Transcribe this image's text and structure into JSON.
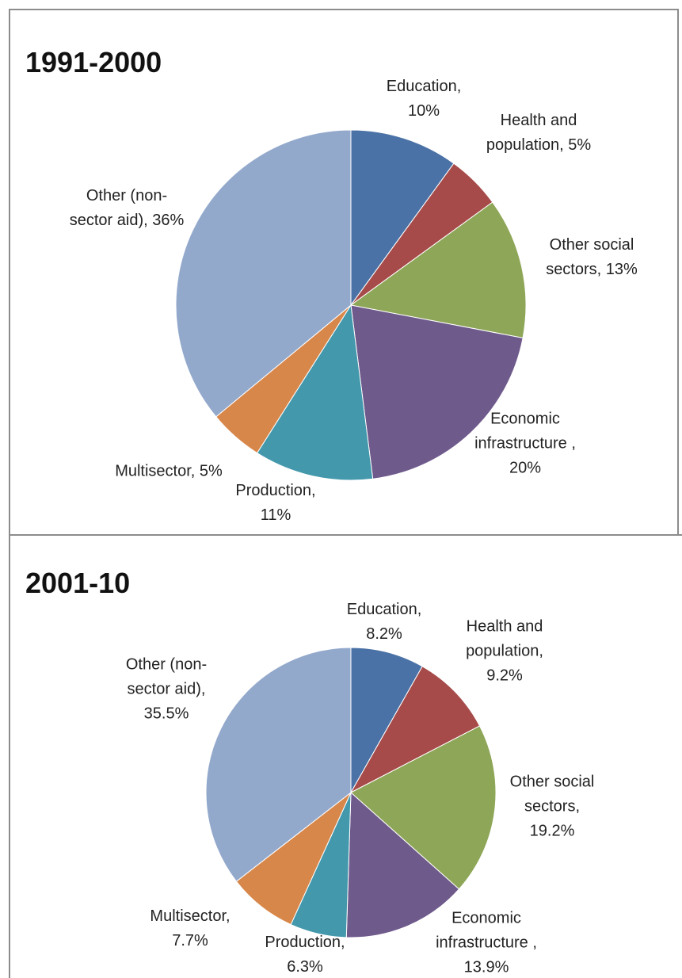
{
  "chart_data": [
    {
      "type": "pie",
      "title": "1991-2000",
      "categories": [
        "Education,",
        "Health and population,",
        "Other social sectors,",
        "Economic infrastructure",
        "Production,",
        "Multisector,",
        "Other (non-sector aid),"
      ],
      "values": [
        10,
        5,
        13,
        20,
        11,
        5,
        36
      ],
      "value_labels": [
        "10%",
        "5%",
        "13%",
        ", 20%",
        "11%",
        "5%",
        "36%"
      ],
      "colors": [
        "#4a72a6",
        "#a64b4a",
        "#8ea657",
        "#6f5a8c",
        "#4398ac",
        "#d8874a",
        "#93a9cc"
      ]
    },
    {
      "type": "pie",
      "title": "2001-10",
      "categories": [
        "Education,",
        "Health and population,",
        "Other social sectors,",
        "Economic infrastructure",
        "Production,",
        "Multisector,",
        "Other (non-sector aid),"
      ],
      "values": [
        8.2,
        9.2,
        19.2,
        13.9,
        6.3,
        7.7,
        35.5
      ],
      "value_labels": [
        "8.2%",
        "9.2%",
        "19.2%",
        ", 13.9%",
        "6.3%",
        "7.7%",
        "35.5%"
      ],
      "colors": [
        "#4a72a6",
        "#a64b4a",
        "#8ea657",
        "#6f5a8c",
        "#4398ac",
        "#d8874a",
        "#93a9cc"
      ]
    }
  ]
}
